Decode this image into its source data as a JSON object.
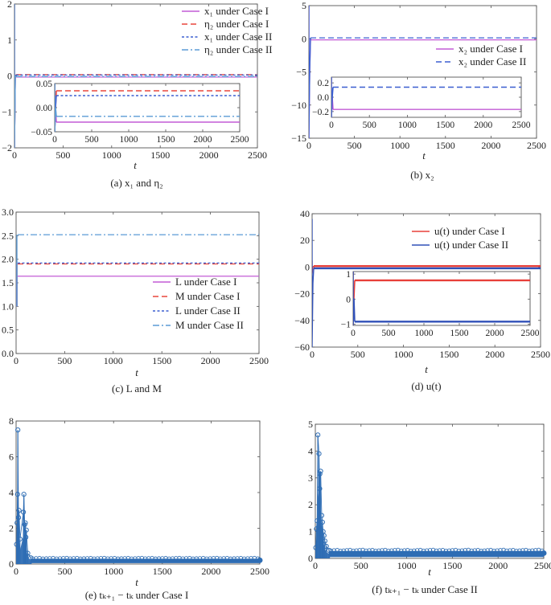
{
  "figure": {
    "subplots": [
      "a",
      "b",
      "c",
      "d",
      "e",
      "f"
    ]
  },
  "chart_data": [
    {
      "id": "a",
      "type": "line",
      "caption": "(a)  x₁ and η₂",
      "xlabel": "t",
      "ylabel": "",
      "xlim": [
        0,
        2500
      ],
      "ylim": [
        -2,
        2
      ],
      "xticks": [
        "0",
        "500",
        "1000",
        "1500",
        "2000",
        "2500"
      ],
      "yticks": [
        "−2",
        "−1",
        "0",
        "1",
        "2"
      ],
      "ytick_values": [
        -2,
        -1,
        0,
        1,
        2
      ],
      "legend_position": "top-right",
      "series": [
        {
          "name": "x₁ under Case I",
          "color": "#c25bd6",
          "style": "solid",
          "steady_value": -0.03,
          "initial_range": [
            -2,
            2
          ]
        },
        {
          "name": "η₂ under Case I",
          "color": "#e8463c",
          "style": "dashed",
          "steady_value": 0.035,
          "initial_range": [
            -2,
            2
          ]
        },
        {
          "name": "x₁ under Case II",
          "color": "#3b5fd0",
          "style": "dotted",
          "steady_value": 0.025,
          "initial_range": [
            -2,
            2
          ]
        },
        {
          "name": "η₂ under Case II",
          "color": "#5b9bd5",
          "style": "dashdot",
          "steady_value": -0.018,
          "initial_range": [
            -2,
            2
          ]
        }
      ],
      "inset": {
        "xlim": [
          0,
          2500
        ],
        "ylim": [
          -0.05,
          0.05
        ],
        "xticks": [
          "0",
          "500",
          "1000",
          "1500",
          "2000",
          "2500"
        ],
        "yticks": [
          "−0.05",
          "0.00",
          "0.05"
        ],
        "ytick_values": [
          -0.05,
          0,
          0.05
        ]
      }
    },
    {
      "id": "b",
      "type": "line",
      "caption": "(b)  x₂",
      "xlabel": "t",
      "ylabel": "",
      "xlim": [
        0,
        2500
      ],
      "ylim": [
        -15,
        5
      ],
      "xticks": [
        "0",
        "500",
        "1000",
        "1500",
        "2000",
        "2500"
      ],
      "yticks": [
        "−15",
        "−10",
        "−5",
        "0",
        "5"
      ],
      "ytick_values": [
        -15,
        -10,
        -5,
        0,
        5
      ],
      "legend_position": "center-right",
      "series": [
        {
          "name": "x₂ under Case I",
          "color": "#c25bd6",
          "style": "solid",
          "steady_value": -0.17,
          "initial_range": [
            -15,
            5
          ]
        },
        {
          "name": "x₂ under Case II",
          "color": "#3b5fd0",
          "style": "dashed",
          "steady_value": 0.14,
          "initial_range": [
            -15,
            5
          ]
        }
      ],
      "inset": {
        "xlim": [
          0,
          2500
        ],
        "ylim": [
          -0.28,
          0.28
        ],
        "xticks": [
          "0",
          "500",
          "1000",
          "1500",
          "2000",
          "2500"
        ],
        "yticks": [
          "−0.2",
          "0.0",
          "0.2"
        ],
        "ytick_values": [
          -0.2,
          0,
          0.2
        ]
      }
    },
    {
      "id": "c",
      "type": "line",
      "caption": "(c)  L and M",
      "xlabel": "t",
      "ylabel": "",
      "xlim": [
        0,
        2500
      ],
      "ylim": [
        0,
        3
      ],
      "xticks": [
        "0",
        "500",
        "1000",
        "1500",
        "2000",
        "2500"
      ],
      "yticks": [
        "0.0",
        "0.5",
        "1.0",
        "1.5",
        "2.0",
        "2.5",
        "3.0"
      ],
      "ytick_values": [
        0,
        0.5,
        1,
        1.5,
        2,
        2.5,
        3
      ],
      "legend_position": "lower-right",
      "series": [
        {
          "name": "L under Case I",
          "color": "#c25bd6",
          "style": "solid",
          "steady_value": 1.64,
          "initial_value": 1.0
        },
        {
          "name": "M under Case I",
          "color": "#e8463c",
          "style": "dashed",
          "steady_value": 1.9,
          "initial_value": 1.0
        },
        {
          "name": "L under Case II",
          "color": "#3b5fd0",
          "style": "dotted",
          "steady_value": 1.92,
          "initial_value": 1.0
        },
        {
          "name": "M under Case II",
          "color": "#5b9bd5",
          "style": "dashdot",
          "steady_value": 2.52,
          "initial_value": 1.0
        }
      ]
    },
    {
      "id": "d",
      "type": "line",
      "caption": "(d)  u(t)",
      "xlabel": "t",
      "ylabel": "",
      "xlim": [
        0,
        2500
      ],
      "ylim": [
        -60,
        40
      ],
      "xticks": [
        "0",
        "500",
        "1000",
        "1500",
        "2000",
        "2500"
      ],
      "yticks": [
        "−60",
        "−40",
        "−20",
        "0",
        "20",
        "40"
      ],
      "ytick_values": [
        -60,
        -40,
        -20,
        0,
        20,
        40
      ],
      "legend_position": "top-right",
      "series": [
        {
          "name": "u(t) under Case I",
          "color": "#e8403a",
          "style": "solid",
          "steady_value": 0.75,
          "initial_range": [
            -5,
            5
          ]
        },
        {
          "name": "u(t) under Case II",
          "color": "#3050b8",
          "style": "solid",
          "steady_value": -0.9,
          "initial_range": [
            -60,
            36
          ]
        }
      ],
      "inset": {
        "xlim": [
          0,
          2500
        ],
        "ylim": [
          -1.05,
          1.1
        ],
        "xticks": [
          "0",
          "500",
          "1000",
          "1500",
          "2000",
          "2500"
        ],
        "yticks": [
          "−1",
          "0",
          "1"
        ],
        "ytick_values": [
          -1,
          0,
          1
        ]
      }
    },
    {
      "id": "e",
      "type": "scatter",
      "caption": "(e)  tₖ₊₁ − tₖ under Case I",
      "xlabel": "t",
      "ylabel": "",
      "xlim": [
        0,
        2500
      ],
      "ylim": [
        0,
        8
      ],
      "xticks": [
        "0",
        "500",
        "1000",
        "1500",
        "2000",
        "2500"
      ],
      "yticks": [
        "0",
        "2",
        "4",
        "6",
        "8"
      ],
      "ytick_values": [
        0,
        2,
        4,
        6,
        8
      ],
      "color": "#2e6db4",
      "marker": "circle-stem",
      "peaks": [
        {
          "t": 5,
          "v": 1.1
        },
        {
          "t": 10,
          "v": 2.3
        },
        {
          "t": 15,
          "v": 3.9
        },
        {
          "t": 18,
          "v": 7.5
        },
        {
          "t": 25,
          "v": 2.6
        },
        {
          "t": 30,
          "v": 3.0
        },
        {
          "t": 40,
          "v": 1.4
        },
        {
          "t": 75,
          "v": 2.9
        },
        {
          "t": 80,
          "v": 3.9
        },
        {
          "t": 88,
          "v": 2.2
        },
        {
          "t": 95,
          "v": 2.3
        },
        {
          "t": 105,
          "v": 1.9
        },
        {
          "t": 100,
          "v": 1.5
        },
        {
          "t": 120,
          "v": 0.6
        },
        {
          "t": 150,
          "v": 0.35
        }
      ],
      "steady_band": [
        0.05,
        0.3
      ]
    },
    {
      "id": "f",
      "type": "scatter",
      "caption": "(f)  tₖ₊₁ − tₖ under Case II",
      "xlabel": "t",
      "ylabel": "",
      "xlim": [
        0,
        2500
      ],
      "ylim": [
        0,
        5
      ],
      "xticks": [
        "0",
        "500",
        "1000",
        "1500",
        "2000",
        "2500"
      ],
      "yticks": [
        "0",
        "1",
        "2",
        "3",
        "4",
        "5"
      ],
      "ytick_values": [
        0,
        1,
        2,
        3,
        4,
        5
      ],
      "color": "#2e6db4",
      "marker": "circle-stem",
      "peaks": [
        {
          "t": 5,
          "v": 0.4
        },
        {
          "t": 12,
          "v": 1.1
        },
        {
          "t": 20,
          "v": 1.4
        },
        {
          "t": 28,
          "v": 4.6
        },
        {
          "t": 40,
          "v": 3.9
        },
        {
          "t": 50,
          "v": 3.15
        },
        {
          "t": 58,
          "v": 3.25
        },
        {
          "t": 48,
          "v": 2.6
        },
        {
          "t": 70,
          "v": 1.6
        },
        {
          "t": 78,
          "v": 1.35
        },
        {
          "t": 85,
          "v": 1.0
        },
        {
          "t": 95,
          "v": 0.85
        },
        {
          "t": 105,
          "v": 0.65
        },
        {
          "t": 120,
          "v": 0.45
        },
        {
          "t": 150,
          "v": 0.3
        }
      ],
      "steady_band": [
        0.05,
        0.28
      ]
    }
  ]
}
